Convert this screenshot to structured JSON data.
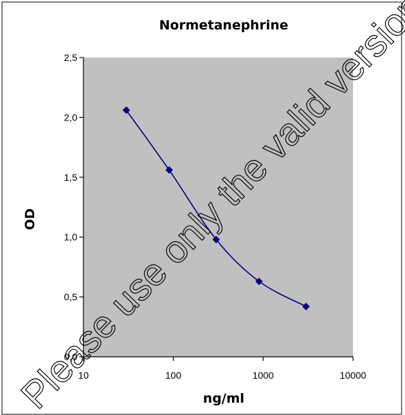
{
  "chart_data": {
    "type": "line",
    "title": "Normetanephrine",
    "xlabel": "ng/ml",
    "ylabel": "OD",
    "x_scale": "log",
    "xlim": [
      10,
      10000
    ],
    "ylim": [
      0,
      2.5
    ],
    "x_ticks": [
      "10",
      "100",
      "1000",
      "10000"
    ],
    "y_ticks": [
      "0,0",
      "0,5",
      "1,0",
      "1,5",
      "2,0",
      "2,5"
    ],
    "grid": false,
    "legend": "none",
    "series": [
      {
        "x": [
          30,
          90,
          300,
          900,
          3000
        ],
        "y": [
          2.06,
          1.56,
          0.98,
          0.63,
          0.42
        ]
      }
    ]
  },
  "watermark": "Please use only the valid version of the",
  "colors": {
    "plot_background": "#c0c0c0",
    "series_line": "#000080",
    "series_marker": "#000080",
    "frame": "#808080"
  }
}
